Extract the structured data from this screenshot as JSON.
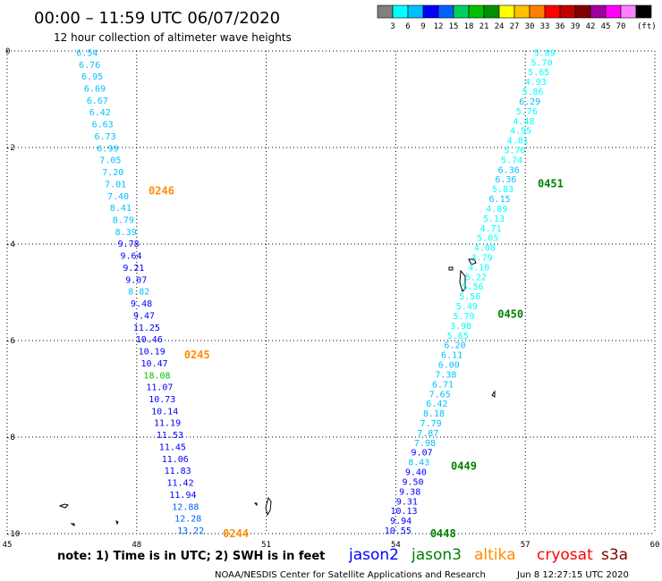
{
  "title": "00:00 – 11:59 UTC 06/07/2020",
  "subtitle": "12 hour collection of altimeter wave heights",
  "legend": {
    "colors": [
      "#808080",
      "#00ffff",
      "#00c0ff",
      "#0000ff",
      "#0060ff",
      "#00d060",
      "#00c000",
      "#009000",
      "#ffff00",
      "#ffc000",
      "#ff8000",
      "#ff0000",
      "#c00000",
      "#800000",
      "#a000a0",
      "#ff00ff",
      "#ff80ff",
      "#000000"
    ],
    "labels": [
      "3",
      "6",
      "9",
      "12",
      "15",
      "18",
      "21",
      "24",
      "27",
      "30",
      "33",
      "36",
      "39",
      "42",
      "45",
      "70"
    ],
    "unit": "(ft)"
  },
  "axes": {
    "x_ticks": [
      "45",
      "48",
      "51",
      "54",
      "57",
      "60"
    ],
    "y_ticks": [
      "0",
      "-2",
      "-4",
      "-6",
      "-8",
      "-10"
    ],
    "xlim": [
      45,
      60
    ],
    "ylim": [
      -10,
      0
    ]
  },
  "note": "note: 1) Time is in UTC; 2) SWH is in feet",
  "satellites": [
    {
      "name": "jason2",
      "color": "#0000ff"
    },
    {
      "name": "jason3",
      "color": "#008000"
    },
    {
      "name": "altika",
      "color": "#ff8c00"
    },
    {
      "name": "cryosat",
      "color": "#ff0000"
    },
    {
      "name": "s3a",
      "color": "#800000"
    }
  ],
  "footer": "NOAA/NESDIS Center for Satellite Applications and Research",
  "timestamp": "Jun  8 12:27:15 UTC 2020",
  "passes": [
    {
      "time_labels": [
        {
          "text": "0246",
          "lat": -2.9,
          "color": "#ff8c00"
        },
        {
          "text": "0245",
          "lat": -6.3,
          "color": "#ff8c00"
        },
        {
          "text": "0244",
          "lat": -10.0,
          "color": "#ff8c00"
        }
      ],
      "start": [
        46.85,
        -0.1
      ],
      "end": [
        49.25,
        -10.0
      ],
      "values": [
        "6.54",
        "6.76",
        "6.95",
        "6.69",
        "6.67",
        "6.42",
        "6.63",
        "6.73",
        "6.99",
        "7.05",
        "7.20",
        "7.01",
        "7.40",
        "8.41",
        "8.79",
        "8.39",
        "9.78",
        "9.64",
        "9.21",
        "9.07",
        "8.82",
        "9.48",
        "9.47",
        "11.25",
        "10.46",
        "10.19",
        "10.47",
        "18.08",
        "11.07",
        "10.73",
        "10.14",
        "11.19",
        "11.53",
        "11.45",
        "11.06",
        "11.83",
        "11.42",
        "11.94",
        "12.88",
        "12.28",
        "13.22"
      ]
    },
    {
      "time_labels": [
        {
          "text": "0451",
          "lat": -2.75,
          "color": "#008000"
        },
        {
          "text": "0450",
          "lat": -5.45,
          "color": "#008000"
        },
        {
          "text": "0449",
          "lat": -8.6,
          "color": "#008000"
        },
        {
          "text": "0448",
          "lat": -10.0,
          "color": "#008000"
        }
      ],
      "start": [
        57.45,
        -0.1
      ],
      "end": [
        54.05,
        -10.0
      ],
      "values": [
        "5.89",
        "5.70",
        "5.65",
        "4.93",
        "5.86",
        "6.29",
        "5.76",
        "4.48",
        "4.95",
        "4.81",
        "5.70",
        "5.74",
        "6.36",
        "6.36",
        "5.83",
        "6.15",
        "4.89",
        "5.13",
        "4.71",
        "5.05",
        "4.08",
        "3.79",
        "4.10",
        "5.22",
        "5.56",
        "5.56",
        "5.49",
        "5.79",
        "3.98",
        "5.65",
        "6.20",
        "6.11",
        "6.00",
        "7.38",
        "6.71",
        "7.65",
        "6.42",
        "8.18",
        "7.79",
        "7.87",
        "7.98",
        "9.07",
        "8.43",
        "9.40",
        "9.50",
        "9.38",
        "9.31",
        "10.13",
        "9.94",
        "10.55"
      ]
    }
  ]
}
